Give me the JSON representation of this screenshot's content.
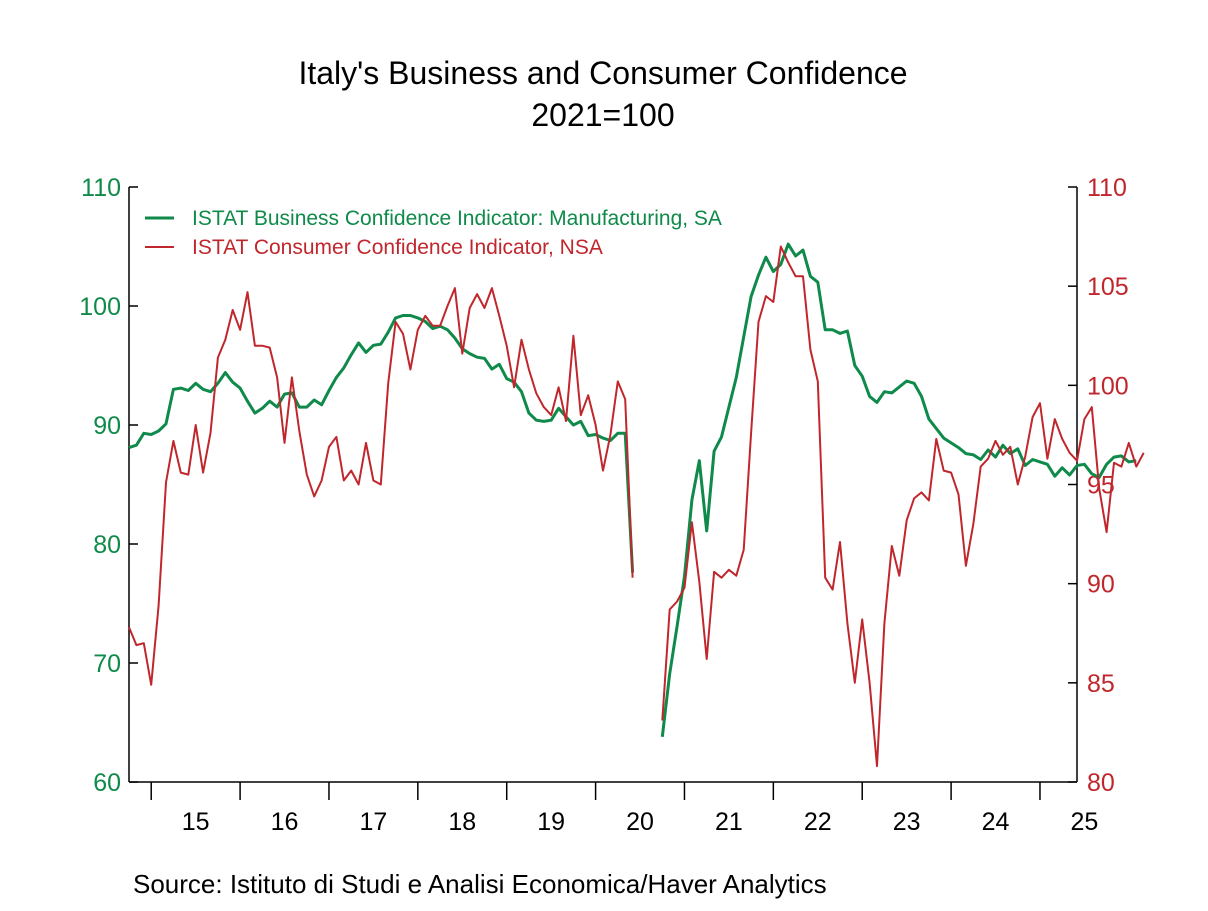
{
  "colors": {
    "background": "#ffffff",
    "axis": "#000000",
    "business": "#0f8a4a",
    "consumer": "#c0272d"
  },
  "chart_data": {
    "type": "line",
    "title": "Italy's Business and Consumer Confidence",
    "subtitle": "2021=100",
    "source": "Source:  Istituto di Studi e Analisi Economica/Haver Analytics",
    "x_start": "2014-10",
    "x_end": "2025-06",
    "x_ticks": [
      "15",
      "16",
      "17",
      "18",
      "19",
      "20",
      "21",
      "22",
      "23",
      "24",
      "25"
    ],
    "y_left": {
      "ylim": [
        60,
        110
      ],
      "ticks": [
        60,
        70,
        80,
        90,
        100,
        110
      ]
    },
    "y_right": {
      "ylim": [
        80,
        110
      ],
      "ticks": [
        80,
        85,
        90,
        95,
        100,
        105,
        110
      ]
    },
    "legend_position": "top-left",
    "grid": false,
    "series": [
      {
        "name": "ISTAT Business Confidence Indicator: Manufacturing, SA",
        "axis": "left",
        "start": "2014-10",
        "values": [
          88.1,
          88.3,
          89.3,
          89.2,
          89.5,
          90.1,
          93.0,
          93.1,
          92.9,
          93.5,
          93.0,
          92.8,
          93.5,
          94.4,
          93.6,
          93.1,
          92.0,
          91.0,
          91.4,
          92.0,
          91.5,
          92.6,
          92.7,
          91.5,
          91.5,
          92.1,
          91.7,
          92.9,
          94.0,
          94.8,
          95.9,
          96.9,
          96.1,
          96.7,
          96.8,
          97.8,
          99.0,
          99.2,
          99.2,
          99.0,
          98.7,
          98.1,
          98.3,
          98.0,
          97.3,
          96.4,
          96.0,
          95.7,
          95.6,
          94.7,
          95.1,
          93.9,
          93.6,
          92.8,
          91.0,
          90.4,
          90.3,
          90.4,
          91.4,
          90.7,
          90.0,
          90.3,
          89.1,
          89.2,
          88.9,
          88.7,
          89.3,
          89.3,
          77.6,
          null,
          null,
          null,
          63.8,
          69.1,
          73.1,
          77.3,
          83.7,
          87.0,
          81.1,
          87.8,
          89.0,
          91.5,
          94.0,
          97.4,
          100.8,
          102.6,
          104.1,
          102.9,
          103.5,
          105.2,
          104.2,
          104.7,
          102.5,
          102.0,
          98.0,
          98.0,
          97.7,
          97.9,
          95.0,
          94.1,
          92.4,
          91.9,
          92.8,
          92.7,
          93.2,
          93.7,
          93.5,
          92.4,
          90.5,
          89.7,
          88.9,
          88.5,
          88.1,
          87.6,
          87.5,
          87.1,
          87.9,
          87.3,
          88.3,
          87.6,
          88.0,
          86.6,
          87.1,
          86.9,
          86.7,
          85.7,
          86.4,
          85.8,
          86.6,
          86.7,
          85.9,
          85.6,
          86.7,
          87.3,
          87.4,
          86.9,
          87.0
        ]
      },
      {
        "name": "ISTAT Consumer Confidence Indicator, NSA",
        "axis": "right",
        "start": "2014-10",
        "values": [
          87.8,
          86.9,
          87.0,
          84.9,
          88.9,
          95.1,
          97.2,
          95.6,
          95.5,
          98.0,
          95.6,
          97.6,
          101.4,
          102.3,
          103.8,
          102.8,
          104.7,
          102.0,
          102.0,
          101.9,
          100.4,
          97.1,
          100.4,
          97.7,
          95.5,
          94.4,
          95.2,
          96.9,
          97.4,
          95.2,
          95.7,
          95.0,
          97.1,
          95.2,
          95.0,
          100.1,
          103.2,
          102.6,
          100.8,
          102.8,
          103.5,
          103.0,
          103.0,
          104.0,
          104.9,
          101.6,
          103.9,
          104.6,
          103.9,
          104.9,
          103.5,
          102.0,
          99.9,
          102.3,
          100.8,
          99.6,
          98.9,
          98.5,
          99.9,
          98.2,
          102.5,
          98.5,
          99.5,
          98.0,
          95.7,
          97.5,
          100.2,
          99.3,
          90.3,
          null,
          null,
          null,
          83.1,
          88.7,
          89.1,
          89.8,
          93.1,
          90.1,
          86.2,
          90.6,
          90.3,
          90.7,
          90.4,
          91.7,
          97.6,
          103.2,
          104.5,
          104.2,
          107.0,
          106.2,
          105.5,
          105.5,
          101.8,
          100.2,
          90.3,
          89.7,
          92.1,
          88.0,
          85.0,
          88.2,
          85.0,
          80.8,
          88.0,
          91.9,
          90.4,
          93.2,
          94.3,
          94.6,
          94.2,
          97.3,
          95.7,
          95.6,
          94.5,
          90.9,
          93.0,
          95.9,
          96.3,
          97.2,
          96.5,
          96.9,
          95.0,
          96.4,
          98.4,
          99.1,
          96.3,
          98.3,
          97.3,
          96.6,
          96.2,
          98.3,
          98.9,
          94.8,
          92.6,
          96.1,
          95.9,
          97.1,
          95.9,
          96.6
        ]
      }
    ]
  }
}
